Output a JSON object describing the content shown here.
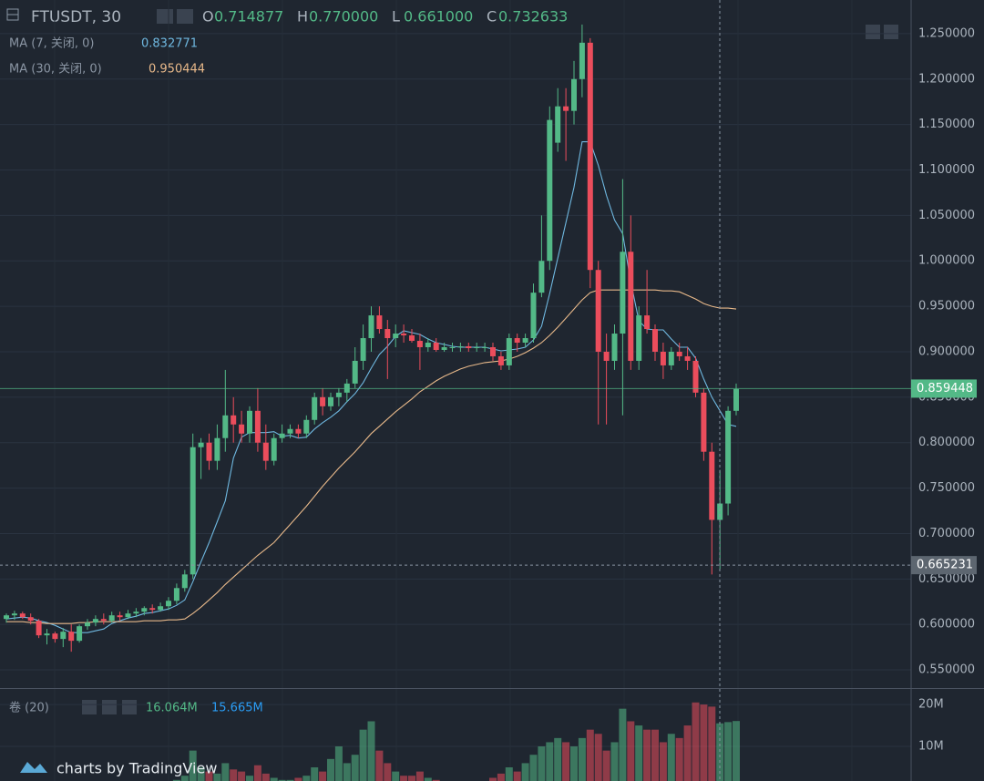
{
  "chart_data": {
    "type": "candlestick",
    "symbol": "FTUSDT, 30",
    "ohlc_readout": [
      {
        "label": "O",
        "value": "0.714877"
      },
      {
        "label": "H",
        "value": "0.770000"
      },
      {
        "label": "L",
        "value": "0.661000"
      },
      {
        "label": "C",
        "value": "0.732633"
      }
    ],
    "up_color": "#53b987",
    "down_color": "#eb4d5c",
    "open": [
      0.606,
      0.61,
      0.612,
      0.608,
      0.604,
      0.588,
      0.59,
      0.584,
      0.592,
      0.582,
      0.598,
      0.602,
      0.606,
      0.604,
      0.61,
      0.608,
      0.612,
      0.614,
      0.618,
      0.616,
      0.62,
      0.626,
      0.64,
      0.655,
      0.795,
      0.8,
      0.78,
      0.805,
      0.83,
      0.82,
      0.81,
      0.835,
      0.8,
      0.78,
      0.805,
      0.81,
      0.815,
      0.81,
      0.825,
      0.85,
      0.84,
      0.85,
      0.855,
      0.865,
      0.89,
      0.915,
      0.94,
      0.925,
      0.915,
      0.92,
      0.918,
      0.912,
      0.905,
      0.91,
      0.902,
      0.905,
      0.905,
      0.906,
      0.904,
      0.905,
      0.905,
      0.895,
      0.885,
      0.915,
      0.91,
      0.915,
      0.965,
      1.0,
      1.13,
      1.17,
      1.165,
      1.2,
      1.24,
      0.99,
      0.9,
      0.89,
      0.92,
      1.01,
      0.89,
      0.94,
      0.925,
      0.9,
      0.885,
      0.9,
      0.895,
      0.89,
      0.855,
      0.79,
      0.715,
      0.733,
      0.835
    ],
    "high": [
      0.612,
      0.615,
      0.614,
      0.612,
      0.606,
      0.595,
      0.592,
      0.596,
      0.6,
      0.6,
      0.606,
      0.61,
      0.612,
      0.614,
      0.614,
      0.616,
      0.618,
      0.62,
      0.622,
      0.624,
      0.63,
      0.645,
      0.66,
      0.81,
      0.805,
      0.81,
      0.82,
      0.88,
      0.85,
      0.835,
      0.84,
      0.86,
      0.82,
      0.81,
      0.82,
      0.82,
      0.82,
      0.83,
      0.855,
      0.86,
      0.855,
      0.86,
      0.87,
      0.905,
      0.93,
      0.95,
      0.95,
      0.935,
      0.93,
      0.93,
      0.925,
      0.92,
      0.915,
      0.915,
      0.91,
      0.91,
      0.91,
      0.91,
      0.91,
      0.91,
      0.91,
      0.9,
      0.92,
      0.92,
      0.92,
      0.975,
      1.05,
      1.17,
      1.19,
      1.19,
      1.22,
      1.26,
      1.245,
      1.0,
      0.92,
      0.93,
      1.09,
      1.05,
      0.95,
      0.99,
      0.93,
      0.91,
      0.905,
      0.91,
      0.905,
      0.895,
      0.86,
      0.8,
      0.77,
      0.84,
      0.865
    ],
    "low": [
      0.602,
      0.605,
      0.606,
      0.6,
      0.585,
      0.578,
      0.58,
      0.575,
      0.57,
      0.58,
      0.594,
      0.598,
      0.6,
      0.602,
      0.604,
      0.606,
      0.608,
      0.61,
      0.612,
      0.614,
      0.616,
      0.622,
      0.636,
      0.65,
      0.76,
      0.77,
      0.77,
      0.79,
      0.8,
      0.8,
      0.8,
      0.79,
      0.77,
      0.775,
      0.8,
      0.805,
      0.805,
      0.805,
      0.82,
      0.83,
      0.835,
      0.84,
      0.845,
      0.86,
      0.88,
      0.9,
      0.92,
      0.87,
      0.905,
      0.91,
      0.91,
      0.88,
      0.9,
      0.9,
      0.9,
      0.9,
      0.9,
      0.9,
      0.9,
      0.9,
      0.89,
      0.88,
      0.88,
      0.9,
      0.905,
      0.91,
      0.96,
      0.99,
      1.12,
      1.11,
      1.15,
      1.18,
      0.97,
      0.82,
      0.82,
      0.88,
      0.83,
      0.88,
      0.88,
      0.92,
      0.89,
      0.87,
      0.88,
      0.89,
      0.88,
      0.85,
      0.78,
      0.655,
      0.661,
      0.72,
      0.83
    ],
    "close": [
      0.61,
      0.612,
      0.608,
      0.604,
      0.588,
      0.59,
      0.584,
      0.592,
      0.582,
      0.598,
      0.602,
      0.606,
      0.604,
      0.61,
      0.608,
      0.612,
      0.614,
      0.618,
      0.616,
      0.62,
      0.626,
      0.64,
      0.655,
      0.795,
      0.8,
      0.78,
      0.805,
      0.83,
      0.82,
      0.81,
      0.835,
      0.8,
      0.78,
      0.805,
      0.81,
      0.815,
      0.81,
      0.825,
      0.85,
      0.84,
      0.85,
      0.855,
      0.865,
      0.89,
      0.915,
      0.94,
      0.925,
      0.915,
      0.92,
      0.918,
      0.912,
      0.905,
      0.91,
      0.902,
      0.905,
      0.905,
      0.906,
      0.904,
      0.905,
      0.905,
      0.895,
      0.885,
      0.915,
      0.91,
      0.915,
      0.965,
      1.0,
      1.155,
      1.17,
      1.165,
      1.2,
      1.24,
      0.99,
      0.9,
      0.89,
      0.92,
      1.01,
      0.89,
      0.94,
      0.925,
      0.9,
      0.885,
      0.9,
      0.895,
      0.89,
      0.855,
      0.79,
      0.715,
      0.733,
      0.835,
      0.859
    ],
    "moving_averages": [
      {
        "name": "MA (7, 关闭, 0)",
        "value_label": "0.832771",
        "color": "#6fb8e0",
        "values": [
          0.606,
          0.607,
          0.608,
          0.607,
          0.604,
          0.602,
          0.599,
          0.595,
          0.591,
          0.591,
          0.591,
          0.593,
          0.595,
          0.601,
          0.604,
          0.607,
          0.609,
          0.612,
          0.613,
          0.615,
          0.617,
          0.621,
          0.627,
          0.647,
          0.669,
          0.69,
          0.713,
          0.736,
          0.783,
          0.806,
          0.811,
          0.811,
          0.811,
          0.812,
          0.807,
          0.808,
          0.805,
          0.806,
          0.815,
          0.822,
          0.828,
          0.835,
          0.845,
          0.854,
          0.866,
          0.882,
          0.897,
          0.906,
          0.917,
          0.923,
          0.921,
          0.919,
          0.914,
          0.91,
          0.908,
          0.906,
          0.905,
          0.905,
          0.905,
          0.905,
          0.903,
          0.901,
          0.902,
          0.903,
          0.905,
          0.913,
          0.928,
          0.964,
          1.003,
          1.042,
          1.081,
          1.131,
          1.131,
          1.105,
          1.072,
          1.045,
          1.03,
          0.977,
          0.934,
          0.925,
          0.924,
          0.924,
          0.914,
          0.905,
          0.905,
          0.893,
          0.87,
          0.85,
          0.835,
          0.82,
          0.818
        ]
      },
      {
        "name": "MA (30, 关闭, 0)",
        "value_label": "0.950444",
        "color": "#e8b98a",
        "values": [
          0.603,
          0.603,
          0.603,
          0.602,
          0.602,
          0.601,
          0.601,
          0.601,
          0.601,
          0.602,
          0.602,
          0.603,
          0.603,
          0.603,
          0.603,
          0.603,
          0.603,
          0.604,
          0.604,
          0.604,
          0.605,
          0.605,
          0.606,
          0.612,
          0.619,
          0.627,
          0.635,
          0.644,
          0.652,
          0.66,
          0.668,
          0.676,
          0.683,
          0.69,
          0.7,
          0.71,
          0.72,
          0.73,
          0.741,
          0.752,
          0.762,
          0.772,
          0.781,
          0.79,
          0.8,
          0.81,
          0.818,
          0.826,
          0.834,
          0.841,
          0.848,
          0.856,
          0.862,
          0.868,
          0.873,
          0.877,
          0.881,
          0.884,
          0.886,
          0.888,
          0.889,
          0.89,
          0.892,
          0.895,
          0.899,
          0.904,
          0.91,
          0.918,
          0.927,
          0.937,
          0.947,
          0.957,
          0.965,
          0.968,
          0.968,
          0.968,
          0.968,
          0.968,
          0.968,
          0.968,
          0.968,
          0.967,
          0.967,
          0.966,
          0.962,
          0.958,
          0.953,
          0.95,
          0.948,
          0.948,
          0.947
        ]
      }
    ],
    "ylim": [
      0.53,
      1.287
    ],
    "yticks": [
      {
        "value": 1.25,
        "label": "1.250000"
      },
      {
        "value": 1.2,
        "label": "1.200000"
      },
      {
        "value": 1.15,
        "label": "1.150000"
      },
      {
        "value": 1.1,
        "label": "1.100000"
      },
      {
        "value": 1.05,
        "label": "1.050000"
      },
      {
        "value": 1.0,
        "label": "1.000000"
      },
      {
        "value": 0.95,
        "label": "0.950000"
      },
      {
        "value": 0.9,
        "label": "0.900000"
      },
      {
        "value": 0.85,
        "label": "0.850000"
      },
      {
        "value": 0.8,
        "label": "0.800000"
      },
      {
        "value": 0.75,
        "label": "0.750000"
      },
      {
        "value": 0.7,
        "label": "0.700000"
      },
      {
        "value": 0.65,
        "label": "0.650000"
      },
      {
        "value": 0.6,
        "label": "0.600000"
      },
      {
        "value": 0.55,
        "label": "0.550000"
      }
    ],
    "last_price": 0.859448,
    "crosshair_price": 0.665231,
    "volume": {
      "title": "卷 (20)",
      "value_label": "16.064M",
      "ma_label": "15.665M",
      "ma_color": "#2a9df4",
      "values": [
        0.8,
        0.6,
        0.5,
        0.7,
        1.2,
        1.0,
        0.9,
        1.1,
        1.3,
        0.9,
        0.7,
        0.8,
        0.6,
        0.7,
        0.5,
        0.6,
        0.8,
        0.7,
        0.6,
        0.9,
        1.2,
        2.0,
        3.0,
        9.0,
        5.0,
        4.0,
        3.5,
        6.0,
        4.5,
        4.0,
        3.0,
        5.5,
        3.5,
        2.5,
        2.0,
        2.0,
        2.5,
        3.0,
        5.0,
        4.0,
        7.0,
        10.0,
        6.0,
        8.0,
        14.0,
        16.0,
        9.0,
        6.0,
        4.0,
        3.0,
        3.0,
        4.0,
        2.5,
        2.0,
        1.5,
        1.5,
        1.2,
        1.0,
        1.2,
        1.5,
        2.5,
        3.5,
        5.0,
        4.0,
        6.0,
        8.0,
        10.0,
        11.0,
        12.0,
        11.0,
        10.0,
        12.0,
        14.0,
        13.0,
        9.0,
        11.0,
        19.0,
        16.0,
        15.0,
        14.0,
        14.0,
        11.0,
        13.0,
        12.0,
        15.0,
        20.5,
        20.0,
        19.5,
        15.5,
        15.8,
        16.064
      ],
      "ylim": [
        0,
        23.5
      ],
      "yticks": [
        {
          "value": 20,
          "label": "20M"
        },
        {
          "value": 10,
          "label": "10M"
        }
      ]
    },
    "branding": "charts by TradingView"
  }
}
